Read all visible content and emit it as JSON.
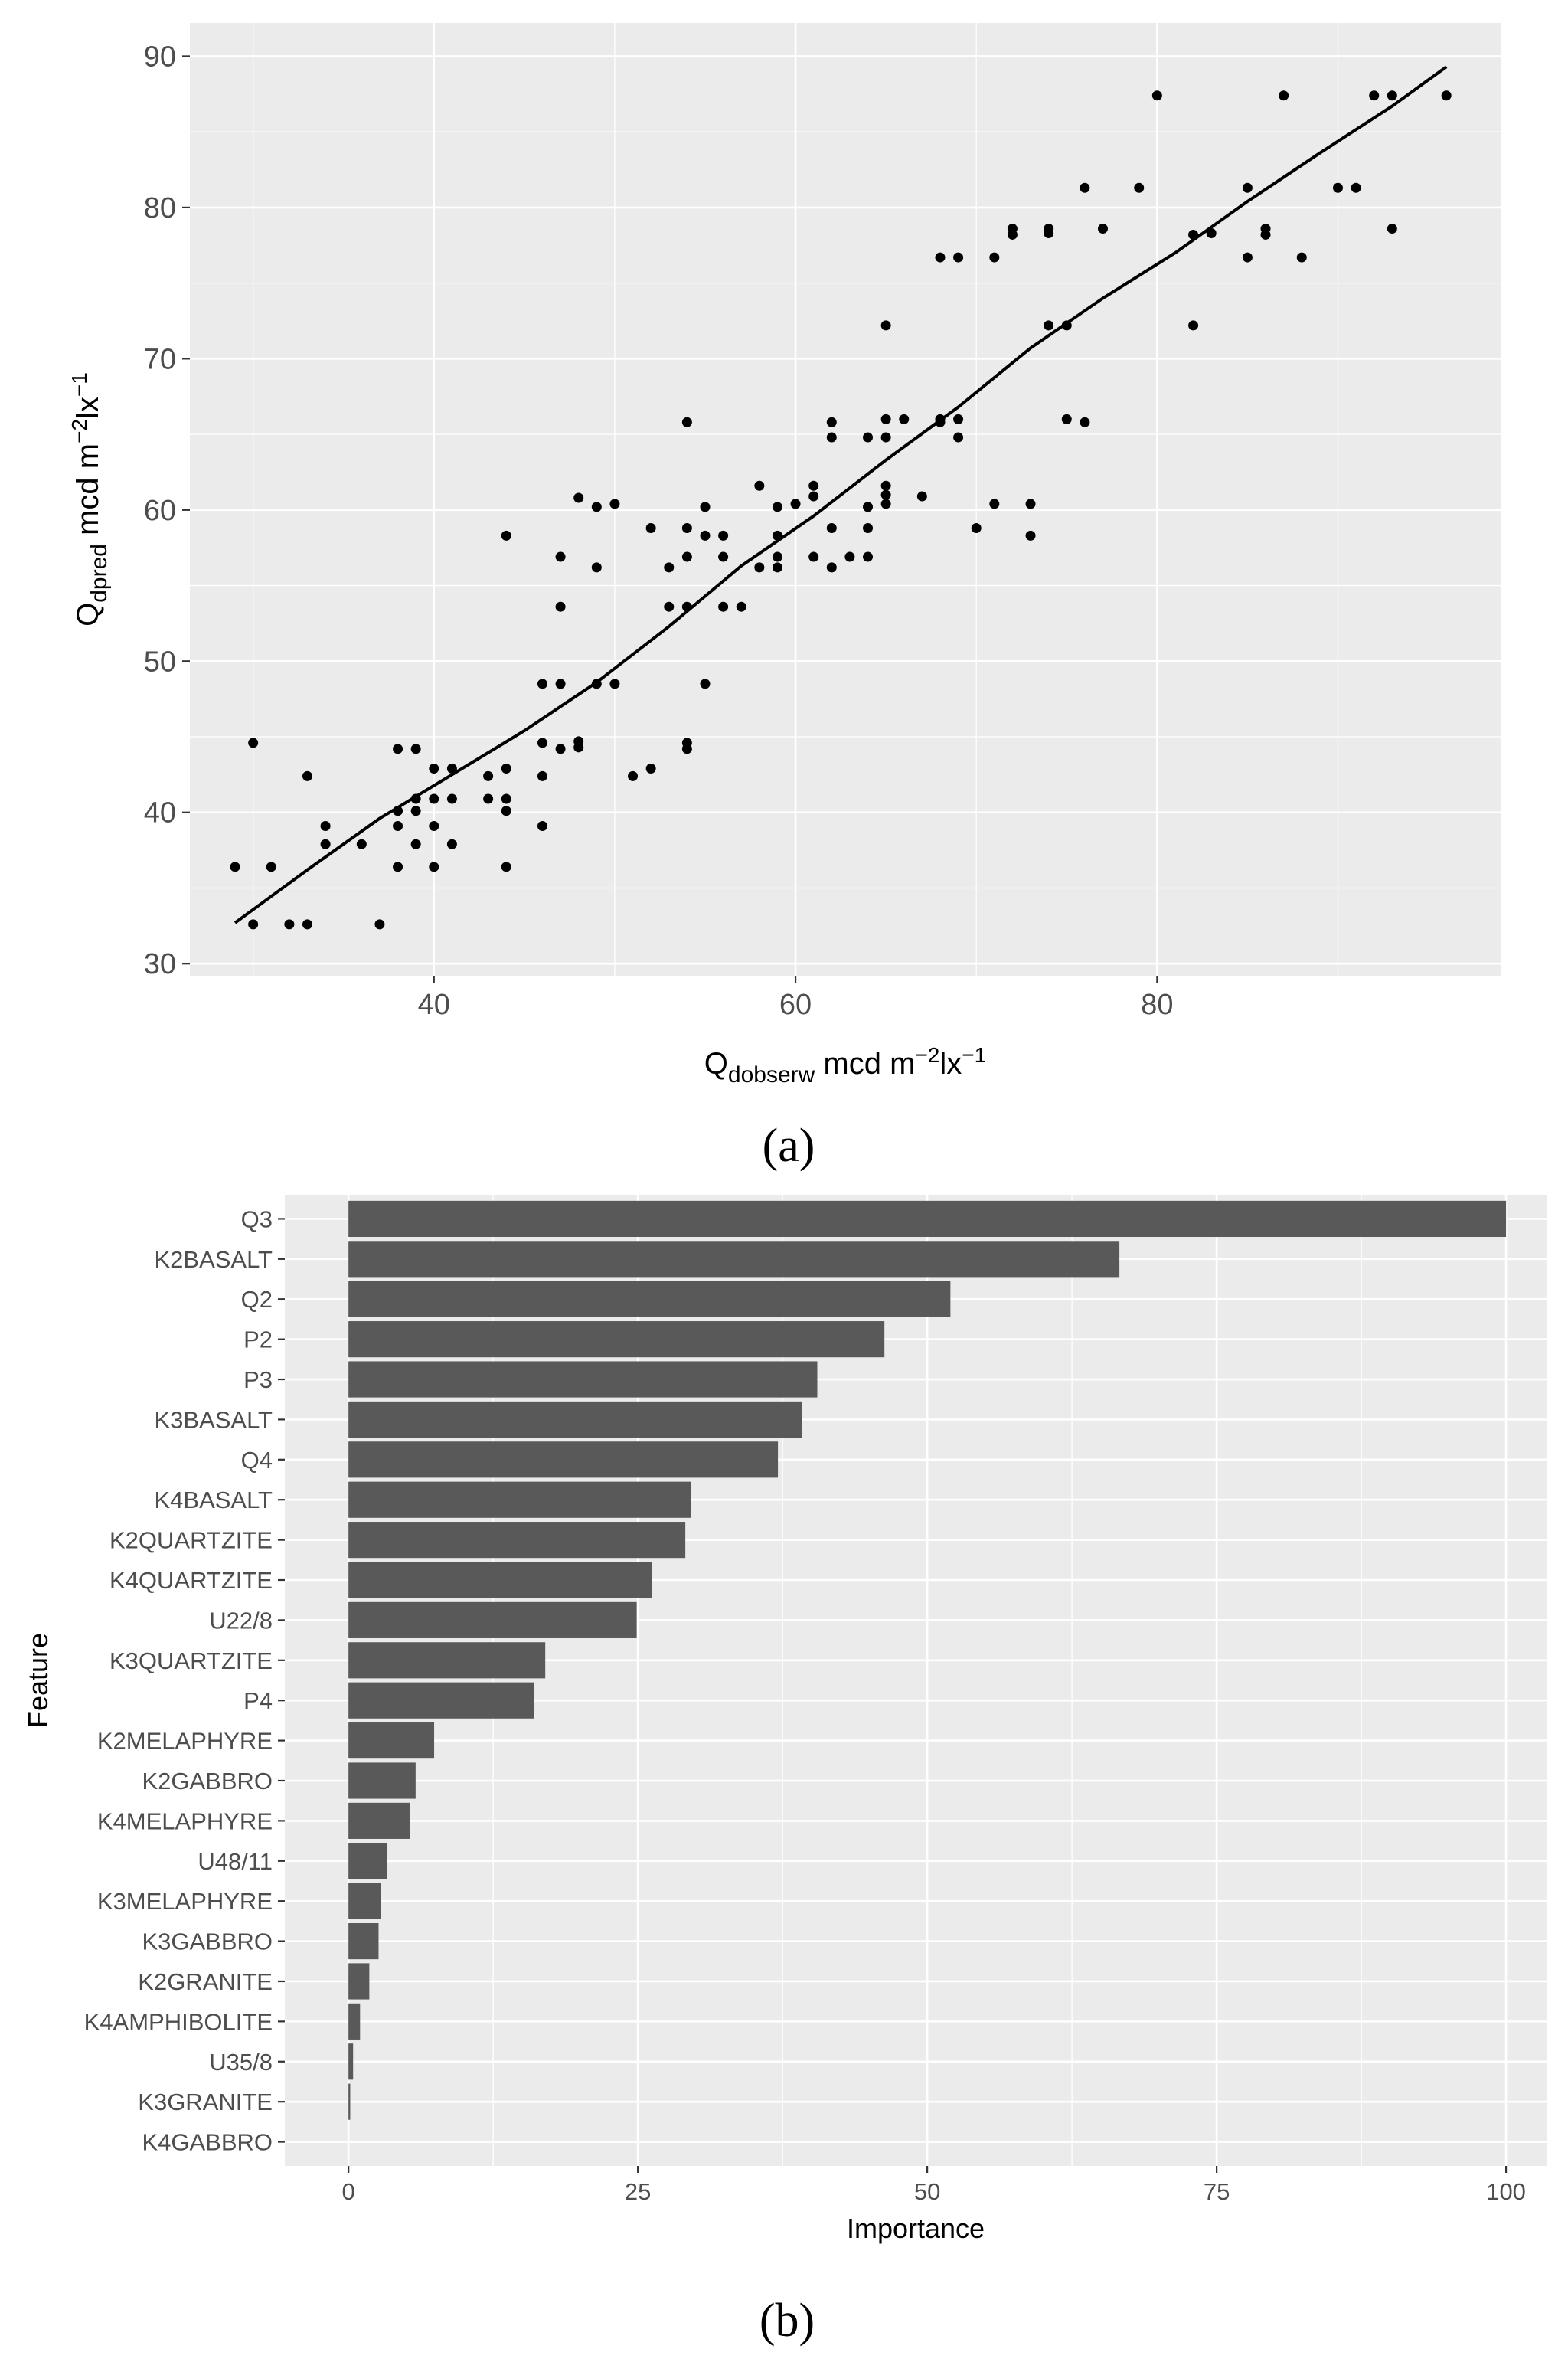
{
  "chart_data": [
    {
      "type": "scatter",
      "panel_label": "(a)",
      "xlabel": {
        "base": "Q",
        "sub": "dobserw",
        "unit_pre": " mcd m",
        "sup1": "−2",
        "unit_mid": "lx",
        "sup2": "−1"
      },
      "ylabel": {
        "base": "Q",
        "sub": "dpred",
        "unit_pre": " mcd m",
        "sup1": "−2",
        "unit_mid": "lx",
        "sup2": "−1"
      },
      "xlim": [
        26.5,
        99
      ],
      "ylim": [
        29.2,
        92.2
      ],
      "x_ticks": [
        40,
        60,
        80
      ],
      "y_ticks": [
        30,
        40,
        50,
        60,
        70,
        80,
        90
      ],
      "grid": true,
      "fit_line": [
        {
          "x": 29,
          "y": 32.7
        },
        {
          "x": 33,
          "y": 36.2
        },
        {
          "x": 37,
          "y": 39.6
        },
        {
          "x": 41,
          "y": 42.5
        },
        {
          "x": 45,
          "y": 45.4
        },
        {
          "x": 49,
          "y": 48.6
        },
        {
          "x": 53,
          "y": 52.3
        },
        {
          "x": 57,
          "y": 56.3
        },
        {
          "x": 61,
          "y": 59.6
        },
        {
          "x": 65,
          "y": 63.3
        },
        {
          "x": 69,
          "y": 66.8
        },
        {
          "x": 73,
          "y": 70.7
        },
        {
          "x": 77,
          "y": 74.0
        },
        {
          "x": 81,
          "y": 77.0
        },
        {
          "x": 85,
          "y": 80.4
        },
        {
          "x": 89,
          "y": 83.6
        },
        {
          "x": 93,
          "y": 86.7
        },
        {
          "x": 96,
          "y": 89.3
        }
      ],
      "points": [
        [
          29,
          36.4
        ],
        [
          30,
          32.6
        ],
        [
          30,
          44.6
        ],
        [
          31,
          36.4
        ],
        [
          32,
          32.6
        ],
        [
          33,
          32.6
        ],
        [
          33,
          42.4
        ],
        [
          34,
          37.9
        ],
        [
          34,
          39.1
        ],
        [
          36,
          37.9
        ],
        [
          37,
          32.6
        ],
        [
          38,
          36.4
        ],
        [
          38,
          39.1
        ],
        [
          38,
          40.1
        ],
        [
          38,
          44.2
        ],
        [
          39,
          37.9
        ],
        [
          39,
          40.1
        ],
        [
          39,
          40.9
        ],
        [
          39,
          44.2
        ],
        [
          40,
          36.4
        ],
        [
          40,
          39.1
        ],
        [
          40,
          40.9
        ],
        [
          40,
          42.9
        ],
        [
          41,
          37.9
        ],
        [
          41,
          40.9
        ],
        [
          41,
          42.9
        ],
        [
          43,
          40.9
        ],
        [
          43,
          42.4
        ],
        [
          44,
          36.4
        ],
        [
          44,
          40.1
        ],
        [
          44,
          40.9
        ],
        [
          44,
          42.9
        ],
        [
          44,
          58.3
        ],
        [
          46,
          39.1
        ],
        [
          46,
          42.4
        ],
        [
          46,
          44.6
        ],
        [
          46,
          48.5
        ],
        [
          47,
          44.2
        ],
        [
          47,
          48.5
        ],
        [
          47,
          53.6
        ],
        [
          47,
          56.9
        ],
        [
          48,
          44.3
        ],
        [
          48,
          44.7
        ],
        [
          48,
          60.8
        ],
        [
          49,
          48.5
        ],
        [
          49,
          56.2
        ],
        [
          49,
          60.2
        ],
        [
          50,
          48.5
        ],
        [
          50,
          60.4
        ],
        [
          51,
          42.4
        ],
        [
          52,
          42.9
        ],
        [
          52,
          58.8
        ],
        [
          53,
          53.6
        ],
        [
          53,
          56.2
        ],
        [
          54,
          44.2
        ],
        [
          54,
          44.6
        ],
        [
          54,
          53.6
        ],
        [
          54,
          56.9
        ],
        [
          54,
          58.8
        ],
        [
          54,
          65.8
        ],
        [
          55,
          48.5
        ],
        [
          55,
          58.3
        ],
        [
          55,
          60.2
        ],
        [
          56,
          53.6
        ],
        [
          56,
          56.9
        ],
        [
          56,
          58.3
        ],
        [
          57,
          53.6
        ],
        [
          58,
          56.2
        ],
        [
          58,
          61.6
        ],
        [
          59,
          56.2
        ],
        [
          59,
          56.9
        ],
        [
          59,
          58.3
        ],
        [
          59,
          60.2
        ],
        [
          60,
          60.4
        ],
        [
          61,
          56.9
        ],
        [
          61,
          60.9
        ],
        [
          61,
          61.6
        ],
        [
          62,
          56.2
        ],
        [
          62,
          58.8
        ],
        [
          62,
          64.8
        ],
        [
          62,
          65.8
        ],
        [
          63,
          56.9
        ],
        [
          64,
          56.9
        ],
        [
          64,
          58.8
        ],
        [
          64,
          60.2
        ],
        [
          64,
          64.8
        ],
        [
          65,
          60.4
        ],
        [
          65,
          61.0
        ],
        [
          65,
          61.6
        ],
        [
          65,
          64.8
        ],
        [
          65,
          66.0
        ],
        [
          65,
          72.2
        ],
        [
          66,
          66.0
        ],
        [
          67,
          60.9
        ],
        [
          68,
          65.8
        ],
        [
          68,
          66.0
        ],
        [
          68,
          76.7
        ],
        [
          69,
          64.8
        ],
        [
          69,
          66.0
        ],
        [
          69,
          76.7
        ],
        [
          70,
          58.8
        ],
        [
          71,
          60.4
        ],
        [
          71,
          76.7
        ],
        [
          72,
          78.2
        ],
        [
          72,
          78.6
        ],
        [
          73,
          58.3
        ],
        [
          73,
          60.4
        ],
        [
          74,
          72.2
        ],
        [
          74,
          78.3
        ],
        [
          74,
          78.6
        ],
        [
          75,
          66.0
        ],
        [
          75,
          72.2
        ],
        [
          76,
          65.8
        ],
        [
          76,
          81.3
        ],
        [
          77,
          78.6
        ],
        [
          79,
          81.3
        ],
        [
          80,
          87.4
        ],
        [
          82,
          72.2
        ],
        [
          82,
          78.2
        ],
        [
          83,
          78.3
        ],
        [
          85,
          76.7
        ],
        [
          85,
          81.3
        ],
        [
          86,
          78.2
        ],
        [
          86,
          78.6
        ],
        [
          87,
          87.4
        ],
        [
          88,
          76.7
        ],
        [
          90,
          81.3
        ],
        [
          91,
          81.3
        ],
        [
          92,
          87.4
        ],
        [
          93,
          78.6
        ],
        [
          93,
          87.4
        ],
        [
          96,
          87.4
        ]
      ]
    },
    {
      "type": "bar",
      "orientation": "horizontal",
      "panel_label": "(b)",
      "xlabel": "Importance",
      "ylabel": "Feature",
      "xlim": [
        -5.5,
        103.5
      ],
      "x_ticks": [
        0,
        25,
        50,
        75,
        100
      ],
      "grid": true,
      "categories": [
        "Q3",
        "K2BASALT",
        "Q2",
        "P2",
        "P3",
        "K3BASALT",
        "Q4",
        "K4BASALT",
        "K2QUARTZITE",
        "K4QUARTZITE",
        "U22/8",
        "K3QUARTZITE",
        "P4",
        "K2MELAPHYRE",
        "K2GABBRO",
        "K4MELAPHYRE",
        "U48/11",
        "K3MELAPHYRE",
        "K3GABBRO",
        "K2GRANITE",
        "K4AMPHIBOLITE",
        "U35/8",
        "K3GRANITE",
        "K4GABBRO"
      ],
      "values": [
        100,
        66.6,
        52.0,
        46.3,
        40.5,
        39.2,
        37.1,
        29.6,
        29.1,
        26.2,
        24.9,
        17.0,
        16.0,
        7.4,
        5.8,
        5.3,
        3.3,
        2.8,
        2.6,
        1.8,
        1.0,
        0.4,
        0.15,
        0
      ]
    }
  ]
}
